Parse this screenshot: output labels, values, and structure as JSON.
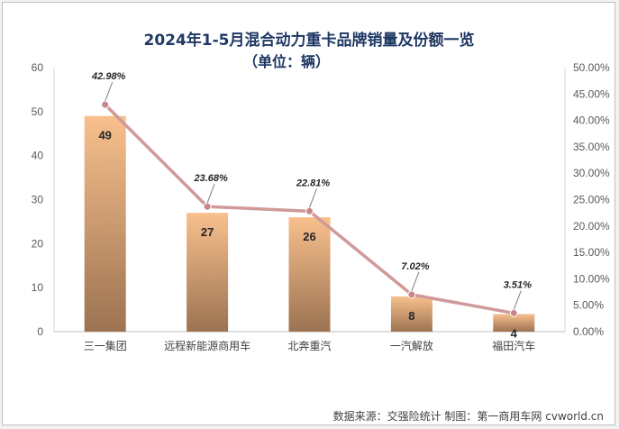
{
  "title": "2024年1-5月混合动力重卡品牌销量及份额一览",
  "subtitle": "（单位：辆）",
  "source_text": "数据来源：交强险统计 制图：第一商用车网 cvworld.cn",
  "chart_data": {
    "type": "bar",
    "title": "2024年1-5月混合动力重卡品牌销量及份额一览",
    "subtitle": "（单位：辆）",
    "categories": [
      "三一集团",
      "远程新能源商用车",
      "北奔重汽",
      "一汽解放",
      "福田汽车"
    ],
    "series": [
      {
        "name": "销量",
        "type": "bar",
        "axis": "left",
        "values": [
          49,
          27,
          26,
          8,
          4
        ],
        "labels": [
          "49",
          "27",
          "26",
          "8",
          "4"
        ]
      },
      {
        "name": "份额",
        "type": "line",
        "axis": "right",
        "values": [
          42.98,
          23.68,
          22.81,
          7.02,
          3.51
        ],
        "labels": [
          "42.98%",
          "23.68%",
          "22.81%",
          "7.02%",
          "3.51%"
        ]
      }
    ],
    "y_left": {
      "min": 0,
      "max": 60,
      "ticks": [
        "0",
        "10",
        "20",
        "30",
        "40",
        "50",
        "60"
      ]
    },
    "y_right": {
      "min": 0,
      "max": 50,
      "ticks": [
        "0.00%",
        "5.00%",
        "10.00%",
        "15.00%",
        "20.00%",
        "25.00%",
        "30.00%",
        "35.00%",
        "40.00%",
        "45.00%",
        "50.00%"
      ]
    },
    "colors": {
      "bar_top": "#f8c08d",
      "bar_bottom": "#9c7352",
      "line": "#d09a9a",
      "marker": "#c8878a"
    },
    "grid": false,
    "legend": "none"
  }
}
